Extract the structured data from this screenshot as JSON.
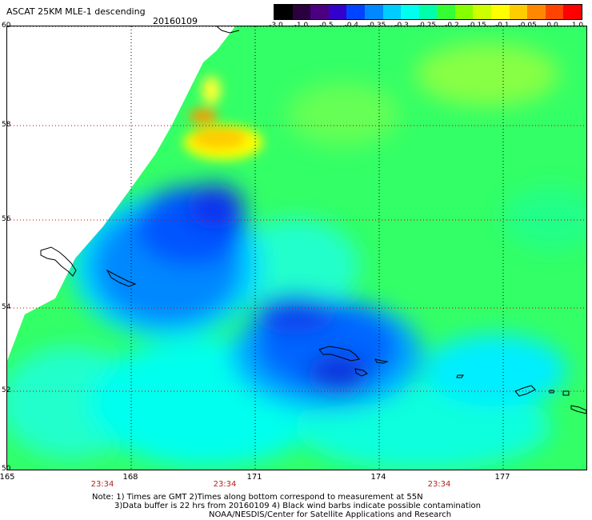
{
  "title": "ASCAT 25KM MLE-1 descending",
  "date": "20160109",
  "colorbar": {
    "labels": [
      "-3.0",
      "-1.0",
      "-0.5",
      "-0.4",
      "-0.35",
      "-0.3",
      "-0.25",
      "-0.2",
      "-0.15",
      "-0.1",
      "-0.05",
      "0.0",
      "1.0"
    ],
    "colors": [
      "#000000",
      "#2a003f",
      "#4b0082",
      "#3300cc",
      "#0044ff",
      "#0088ff",
      "#00ccff",
      "#00ffee",
      "#00ffaa",
      "#33ff33",
      "#88ff00",
      "#ccff00",
      "#ffff00",
      "#ffcc00",
      "#ff8800",
      "#ff4400",
      "#ff0000"
    ]
  },
  "axes": {
    "lat_labels": [
      "60",
      "58",
      "56",
      "54",
      "52",
      "50"
    ],
    "lon_labels": [
      "165",
      "168",
      "171",
      "174",
      "177"
    ],
    "time_labels": [
      "23:34",
      "23:34",
      "23:34"
    ]
  },
  "notes": {
    "line1": "Note: 1) Times are GMT 2)Times along bottom correspond to measurement at 55N",
    "line2": "3)Data buffer is 22 hrs from 20160109 4) Black wind barbs indicate possible contamination",
    "line3": "NOAA/NESDIS/Center for Satellite Applications and Research"
  }
}
